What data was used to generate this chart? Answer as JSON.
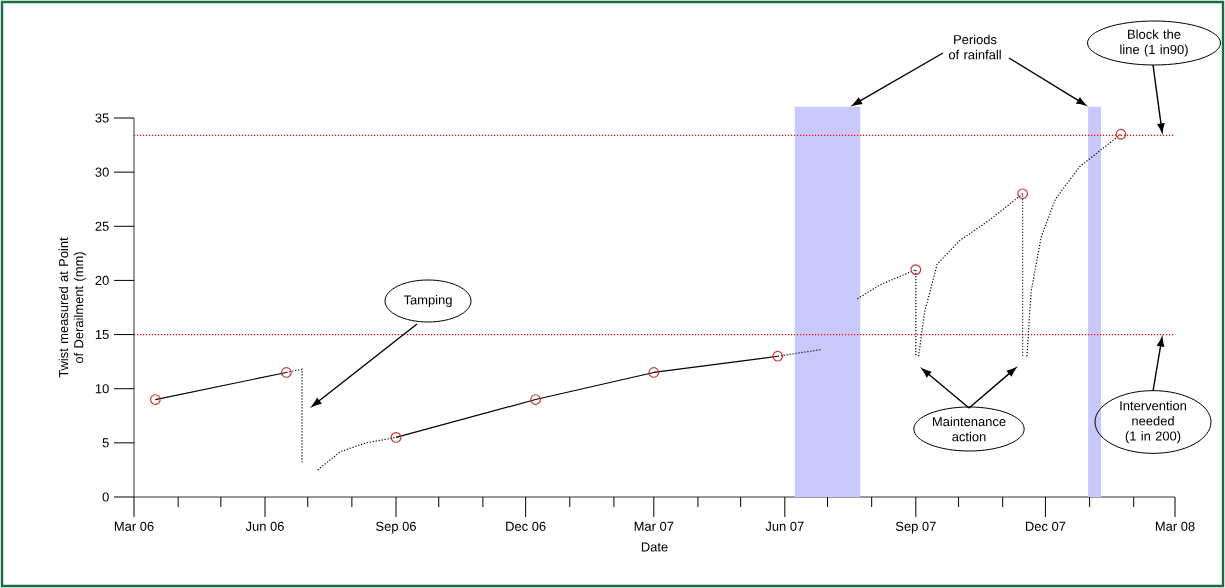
{
  "chart_data": {
    "type": "line",
    "xlabel": "Date",
    "ylabel": "Twist measured at Point of Derailment (mm)",
    "xlim": [
      "2006-03-01",
      "2008-03-01"
    ],
    "xticks": [
      {
        "value": "2006-03-01",
        "label": "Mar 06"
      },
      {
        "value": "2006-04-01",
        "label": null
      },
      {
        "value": "2006-05-01",
        "label": null
      },
      {
        "value": "2006-06-01",
        "label": "Jun 06"
      },
      {
        "value": "2006-07-01",
        "label": null
      },
      {
        "value": "2006-08-01",
        "label": null
      },
      {
        "value": "2006-09-01",
        "label": "Sep 06"
      },
      {
        "value": "2006-10-01",
        "label": null
      },
      {
        "value": "2006-11-01",
        "label": null
      },
      {
        "value": "2006-12-01",
        "label": "Dec 06"
      },
      {
        "value": "2007-01-01",
        "label": null
      },
      {
        "value": "2007-02-01",
        "label": null
      },
      {
        "value": "2007-03-01",
        "label": "Mar 07"
      },
      {
        "value": "2007-04-01",
        "label": null
      },
      {
        "value": "2007-05-01",
        "label": null
      },
      {
        "value": "2007-06-01",
        "label": "Jun 07"
      },
      {
        "value": "2007-07-01",
        "label": null
      },
      {
        "value": "2007-08-01",
        "label": null
      },
      {
        "value": "2007-09-01",
        "label": "Sep 07"
      },
      {
        "value": "2007-10-01",
        "label": null
      },
      {
        "value": "2007-11-01",
        "label": null
      },
      {
        "value": "2007-12-01",
        "label": "Dec 07"
      },
      {
        "value": "2008-01-01",
        "label": null
      },
      {
        "value": "2008-02-01",
        "label": null
      },
      {
        "value": "2008-03-01",
        "label": "Mar 08"
      }
    ],
    "ylim": [
      0,
      35
    ],
    "yticks": [
      0,
      5,
      10,
      15,
      20,
      25,
      30,
      35
    ],
    "series": [
      {
        "color": "#000000",
        "line_style": "solid",
        "marker": "none",
        "x": [
          "2006-03-16",
          "2006-06-16"
        ],
        "values": [
          9,
          11.5
        ]
      },
      {
        "color": "#000000",
        "line_style": "solid",
        "marker": "none",
        "x": [
          "2006-09-01",
          "2006-12-08",
          "2007-03-01",
          "2007-05-27"
        ],
        "values": [
          5.5,
          9,
          11.5,
          13
        ]
      },
      {
        "color": "#000000",
        "line_style": "dotted",
        "marker": "none",
        "x": [
          "2006-06-16",
          "2006-06-27",
          "2006-06-27",
          "2006-07-01",
          "2006-07-08",
          "2006-07-24",
          "2006-08-11",
          "2006-09-01",
          "2006-09-02",
          "2007-05-27",
          "2007-06-26",
          "2007-07-01",
          "2007-07-22",
          "2007-08-07",
          "2007-09-01",
          "2007-09-01",
          "2007-09-02",
          "2007-09-03",
          "2007-09-07",
          "2007-09-16",
          "2007-10-02",
          "2007-10-23",
          "2007-11-15",
          "2007-11-15",
          "2007-11-16",
          "2007-11-18",
          "2007-11-21",
          "2007-11-28",
          "2007-12-08",
          "2007-12-25",
          "2008-01-23"
        ],
        "values": [
          11.5,
          11.8,
          3.2,
          null,
          2.5,
          4.2,
          5.0,
          5.5,
          null,
          13,
          13.6,
          null,
          18.3,
          19.6,
          21,
          13,
          null,
          13,
          17,
          21.5,
          23.7,
          25.6,
          28,
          13,
          null,
          13,
          19,
          24,
          27.5,
          30.5,
          33.5
        ]
      },
      {
        "type": "scatter",
        "color": "#cc3333",
        "marker": "circle",
        "x": [
          "2006-03-16",
          "2006-06-16",
          "2006-09-01",
          "2006-12-08",
          "2007-03-01",
          "2007-05-27",
          "2007-09-01",
          "2007-11-15",
          "2008-01-23"
        ],
        "values": [
          9,
          11.5,
          5.5,
          9,
          11.5,
          13,
          21,
          28,
          33.5
        ]
      }
    ],
    "bands": [
      {
        "axis": "x",
        "from": "2007-06-08",
        "to": "2007-07-24",
        "color": "#c8c8fa"
      },
      {
        "axis": "x",
        "from": "2007-12-31",
        "to": "2008-01-09",
        "color": "#c8c8fa"
      }
    ],
    "ref_lines": [
      {
        "axis": "y",
        "value": 33.4,
        "color": "#ff0000",
        "line_style": "dotted"
      },
      {
        "axis": "y",
        "value": 15,
        "color": "#ff0000",
        "line_style": "dotted"
      }
    ],
    "annotations": [
      "Tamping",
      "Periods of rainfall",
      "Maintenance action",
      "Block the line (1 in90)",
      "Intervention needed (1 in 200)"
    ]
  }
}
